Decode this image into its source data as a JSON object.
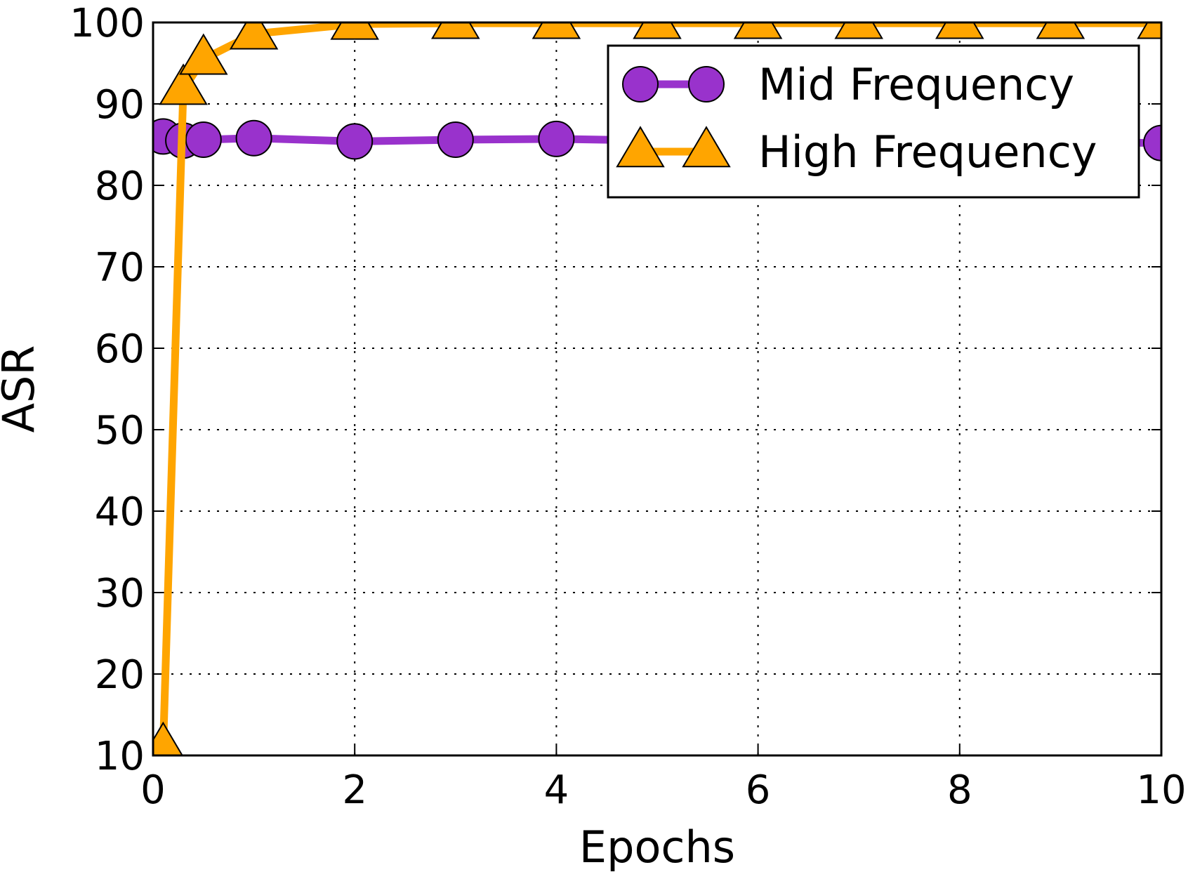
{
  "chart_data": {
    "type": "line",
    "xlabel": "Epochs",
    "ylabel": "ASR",
    "xlim": [
      0,
      10
    ],
    "ylim": [
      10,
      100
    ],
    "xticks": [
      0,
      2,
      4,
      6,
      8,
      10
    ],
    "yticks": [
      10,
      20,
      30,
      40,
      50,
      60,
      70,
      80,
      90,
      100
    ],
    "grid": true,
    "legend_position": "top-right",
    "series": [
      {
        "name": "Mid Frequency",
        "color": "#9932CC",
        "marker": "circle",
        "x": [
          0.1,
          0.3,
          0.5,
          1,
          2,
          3,
          4,
          5,
          6,
          7,
          8,
          9,
          10
        ],
        "y": [
          86.0,
          85.5,
          85.6,
          85.8,
          85.4,
          85.6,
          85.7,
          85.5,
          85.4,
          85.4,
          85.3,
          85.3,
          85.2
        ]
      },
      {
        "name": "High Frequency",
        "color": "#FFA500",
        "marker": "triangle",
        "x": [
          0.1,
          0.3,
          0.5,
          1,
          2,
          3,
          4,
          5,
          6,
          7,
          8,
          9,
          10
        ],
        "y": [
          11.0,
          91.8,
          95.5,
          98.6,
          99.8,
          99.9,
          99.9,
          99.9,
          99.9,
          99.9,
          99.9,
          99.9,
          99.9
        ]
      }
    ]
  }
}
